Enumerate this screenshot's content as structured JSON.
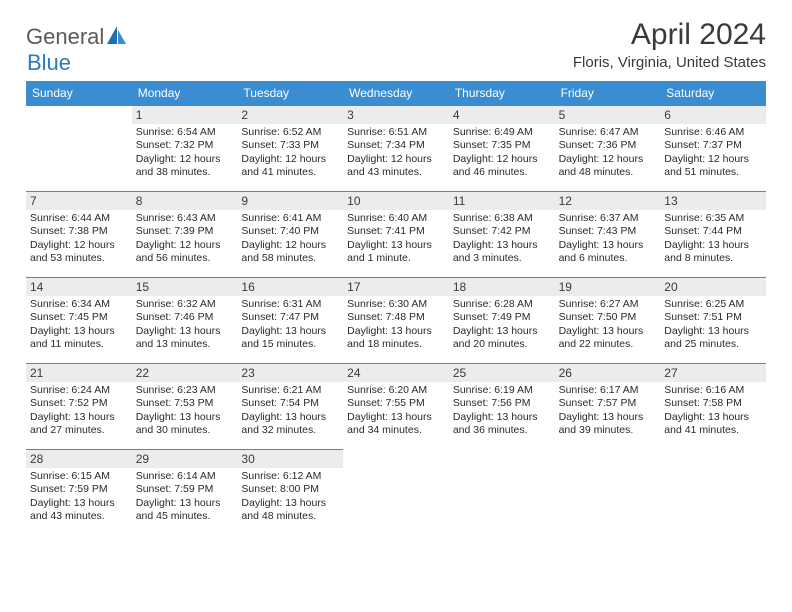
{
  "brand": {
    "text1": "General",
    "text2": "Blue"
  },
  "title": "April 2024",
  "location": "Floris, Virginia, United States",
  "colors": {
    "header_bg": "#3a8dd0",
    "daynum_bg": "#ececec",
    "text": "#3a3a3a",
    "brand_gray": "#5a5a5a",
    "brand_blue": "#2a7bbf"
  },
  "weekdays": [
    "Sunday",
    "Monday",
    "Tuesday",
    "Wednesday",
    "Thursday",
    "Friday",
    "Saturday"
  ],
  "grid": {
    "blanks_before": 1,
    "days": [
      {
        "n": 1,
        "sr": "6:54 AM",
        "ss": "7:32 PM",
        "dl": "12 hours and 38 minutes."
      },
      {
        "n": 2,
        "sr": "6:52 AM",
        "ss": "7:33 PM",
        "dl": "12 hours and 41 minutes."
      },
      {
        "n": 3,
        "sr": "6:51 AM",
        "ss": "7:34 PM",
        "dl": "12 hours and 43 minutes."
      },
      {
        "n": 4,
        "sr": "6:49 AM",
        "ss": "7:35 PM",
        "dl": "12 hours and 46 minutes."
      },
      {
        "n": 5,
        "sr": "6:47 AM",
        "ss": "7:36 PM",
        "dl": "12 hours and 48 minutes."
      },
      {
        "n": 6,
        "sr": "6:46 AM",
        "ss": "7:37 PM",
        "dl": "12 hours and 51 minutes."
      },
      {
        "n": 7,
        "sr": "6:44 AM",
        "ss": "7:38 PM",
        "dl": "12 hours and 53 minutes."
      },
      {
        "n": 8,
        "sr": "6:43 AM",
        "ss": "7:39 PM",
        "dl": "12 hours and 56 minutes."
      },
      {
        "n": 9,
        "sr": "6:41 AM",
        "ss": "7:40 PM",
        "dl": "12 hours and 58 minutes."
      },
      {
        "n": 10,
        "sr": "6:40 AM",
        "ss": "7:41 PM",
        "dl": "13 hours and 1 minute."
      },
      {
        "n": 11,
        "sr": "6:38 AM",
        "ss": "7:42 PM",
        "dl": "13 hours and 3 minutes."
      },
      {
        "n": 12,
        "sr": "6:37 AM",
        "ss": "7:43 PM",
        "dl": "13 hours and 6 minutes."
      },
      {
        "n": 13,
        "sr": "6:35 AM",
        "ss": "7:44 PM",
        "dl": "13 hours and 8 minutes."
      },
      {
        "n": 14,
        "sr": "6:34 AM",
        "ss": "7:45 PM",
        "dl": "13 hours and 11 minutes."
      },
      {
        "n": 15,
        "sr": "6:32 AM",
        "ss": "7:46 PM",
        "dl": "13 hours and 13 minutes."
      },
      {
        "n": 16,
        "sr": "6:31 AM",
        "ss": "7:47 PM",
        "dl": "13 hours and 15 minutes."
      },
      {
        "n": 17,
        "sr": "6:30 AM",
        "ss": "7:48 PM",
        "dl": "13 hours and 18 minutes."
      },
      {
        "n": 18,
        "sr": "6:28 AM",
        "ss": "7:49 PM",
        "dl": "13 hours and 20 minutes."
      },
      {
        "n": 19,
        "sr": "6:27 AM",
        "ss": "7:50 PM",
        "dl": "13 hours and 22 minutes."
      },
      {
        "n": 20,
        "sr": "6:25 AM",
        "ss": "7:51 PM",
        "dl": "13 hours and 25 minutes."
      },
      {
        "n": 21,
        "sr": "6:24 AM",
        "ss": "7:52 PM",
        "dl": "13 hours and 27 minutes."
      },
      {
        "n": 22,
        "sr": "6:23 AM",
        "ss": "7:53 PM",
        "dl": "13 hours and 30 minutes."
      },
      {
        "n": 23,
        "sr": "6:21 AM",
        "ss": "7:54 PM",
        "dl": "13 hours and 32 minutes."
      },
      {
        "n": 24,
        "sr": "6:20 AM",
        "ss": "7:55 PM",
        "dl": "13 hours and 34 minutes."
      },
      {
        "n": 25,
        "sr": "6:19 AM",
        "ss": "7:56 PM",
        "dl": "13 hours and 36 minutes."
      },
      {
        "n": 26,
        "sr": "6:17 AM",
        "ss": "7:57 PM",
        "dl": "13 hours and 39 minutes."
      },
      {
        "n": 27,
        "sr": "6:16 AM",
        "ss": "7:58 PM",
        "dl": "13 hours and 41 minutes."
      },
      {
        "n": 28,
        "sr": "6:15 AM",
        "ss": "7:59 PM",
        "dl": "13 hours and 43 minutes."
      },
      {
        "n": 29,
        "sr": "6:14 AM",
        "ss": "7:59 PM",
        "dl": "13 hours and 45 minutes."
      },
      {
        "n": 30,
        "sr": "6:12 AM",
        "ss": "8:00 PM",
        "dl": "13 hours and 48 minutes."
      }
    ]
  },
  "labels": {
    "sunrise": "Sunrise:",
    "sunset": "Sunset:",
    "daylight": "Daylight:"
  }
}
